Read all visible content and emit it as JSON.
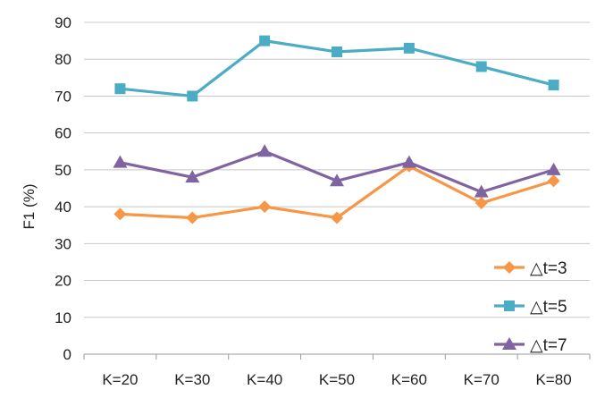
{
  "chart_data": {
    "type": "line",
    "title": "",
    "xlabel": "",
    "ylabel": "F1 (%)",
    "ylim": [
      0,
      90
    ],
    "ytick_step": 10,
    "grid": "horizontal",
    "legend_position": "bottom-right",
    "categories": [
      "K=20",
      "K=30",
      "K=40",
      "K=50",
      "K=60",
      "K=70",
      "K=80"
    ],
    "series": [
      {
        "name": "△t=3",
        "color": "#f79646",
        "marker": "diamond",
        "values": [
          38,
          37,
          40,
          37,
          51,
          41,
          47
        ]
      },
      {
        "name": "△t=5",
        "color": "#4bacc6",
        "marker": "square",
        "values": [
          72,
          70,
          85,
          82,
          83,
          78,
          73
        ]
      },
      {
        "name": "△t=7",
        "color": "#8064a2",
        "marker": "triangle",
        "values": [
          52,
          48,
          55,
          47,
          52,
          44,
          50
        ]
      }
    ]
  }
}
